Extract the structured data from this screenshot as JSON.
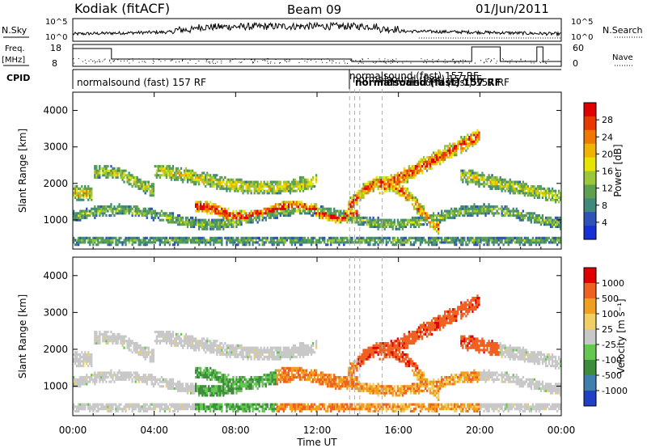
{
  "header": {
    "station": "Kodiak (fitACF)",
    "beam": "Beam 09",
    "date": "01/Jun/2011"
  },
  "top_panels": {
    "nsky_label": "N.Sky",
    "nsky_ticks": [
      "10^5",
      "10^0"
    ],
    "nsearch_label": "N.Search",
    "freq_label": "Freq.",
    "freq_unit": "[MHz]",
    "freq_ticks": [
      "18",
      "8"
    ],
    "nave_ticks": [
      "60",
      "0"
    ],
    "nave_label": "Nave",
    "cpid_label": "CPID",
    "cpid_main": "normalsound (fast) 157 RF",
    "cpid_right": "normalsound (fast) 157 RF",
    "cpid_cluster_1": "normalsound (fast) 157 RF",
    "cpid_cluster_2": "normalsound (fast) 157 RF",
    "cpid_cluster_3": "normalsound (fast) 157 RF",
    "cpid_cluster_4": "normalsound (fast) 157 RF"
  },
  "chart_data": [
    {
      "type": "heatmap",
      "name": "power",
      "ylabel": "Slant Range [km]",
      "yticks": [
        1000,
        2000,
        3000,
        4000
      ],
      "ylim": [
        200,
        4500
      ],
      "xlim": [
        0,
        24
      ],
      "colorbar_label": "Power [dB]",
      "colorbar_ticks": [
        "28",
        "24",
        "20",
        "16",
        "12",
        "8",
        "4"
      ],
      "colors": [
        "#1530d8",
        "#2f52b8",
        "#3f8a78",
        "#5fa050",
        "#9cc838",
        "#e6e400",
        "#f0b400",
        "#f07800",
        "#e83a00",
        "#e00000"
      ]
    },
    {
      "type": "heatmap",
      "name": "velocity",
      "ylabel": "Slant Range [km]",
      "yticks": [
        1000,
        2000,
        3000,
        4000
      ],
      "ylim": [
        200,
        4500
      ],
      "xlim": [
        0,
        24
      ],
      "colorbar_label": "Velocity [m s⁻¹]",
      "colorbar_ticks": [
        "1000",
        "500",
        "100",
        "25",
        "-25",
        "-100",
        "-500",
        "-1000"
      ],
      "colors": [
        "#2040c8",
        "#3f7fb0",
        "#3c8c3c",
        "#64c850",
        "#c8c8c8",
        "#f0d060",
        "#f0a020",
        "#f06020",
        "#e00000"
      ]
    }
  ],
  "xaxis": {
    "title": "Time UT",
    "ticks": [
      "00:00",
      "04:00",
      "08:00",
      "12:00",
      "16:00",
      "20:00",
      "00:00"
    ]
  }
}
